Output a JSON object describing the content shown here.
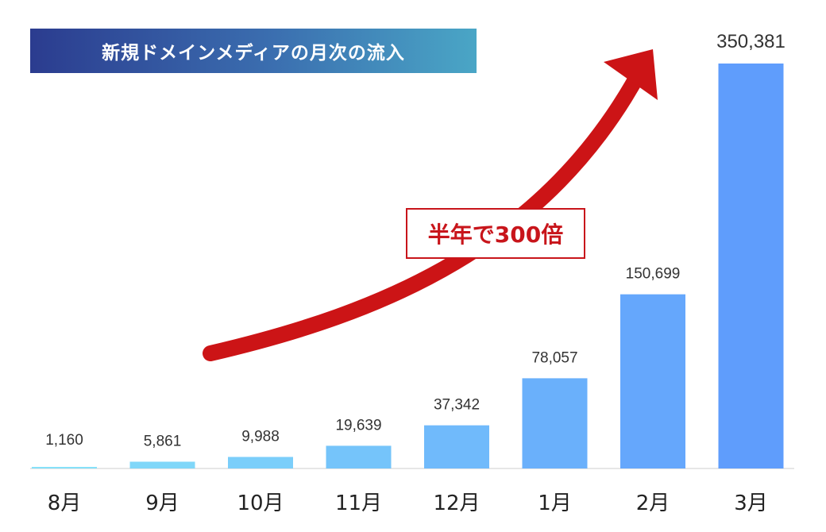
{
  "chart_data": {
    "type": "bar",
    "title": "新規ドメインメディアの月次の流入",
    "categories": [
      "8月",
      "9月",
      "10月",
      "11月",
      "12月",
      "1月",
      "2月",
      "3月"
    ],
    "values": [
      1160,
      5861,
      9988,
      19639,
      37342,
      78057,
      150699,
      350381
    ],
    "value_labels": [
      "1,160",
      "5,861",
      "9,988",
      "19,639",
      "37,342",
      "78,057",
      "150,699",
      "350,381"
    ],
    "ylim": [
      0,
      350381
    ],
    "xlabel": "",
    "ylabel": "",
    "grid": false,
    "legend": "none",
    "annotation": "半年で300倍",
    "colors": {
      "bar_start": "#86e1f9",
      "bar_end": "#5f9dfc",
      "arrow": "#cc1416",
      "baseline": "#e6e6e6"
    }
  }
}
